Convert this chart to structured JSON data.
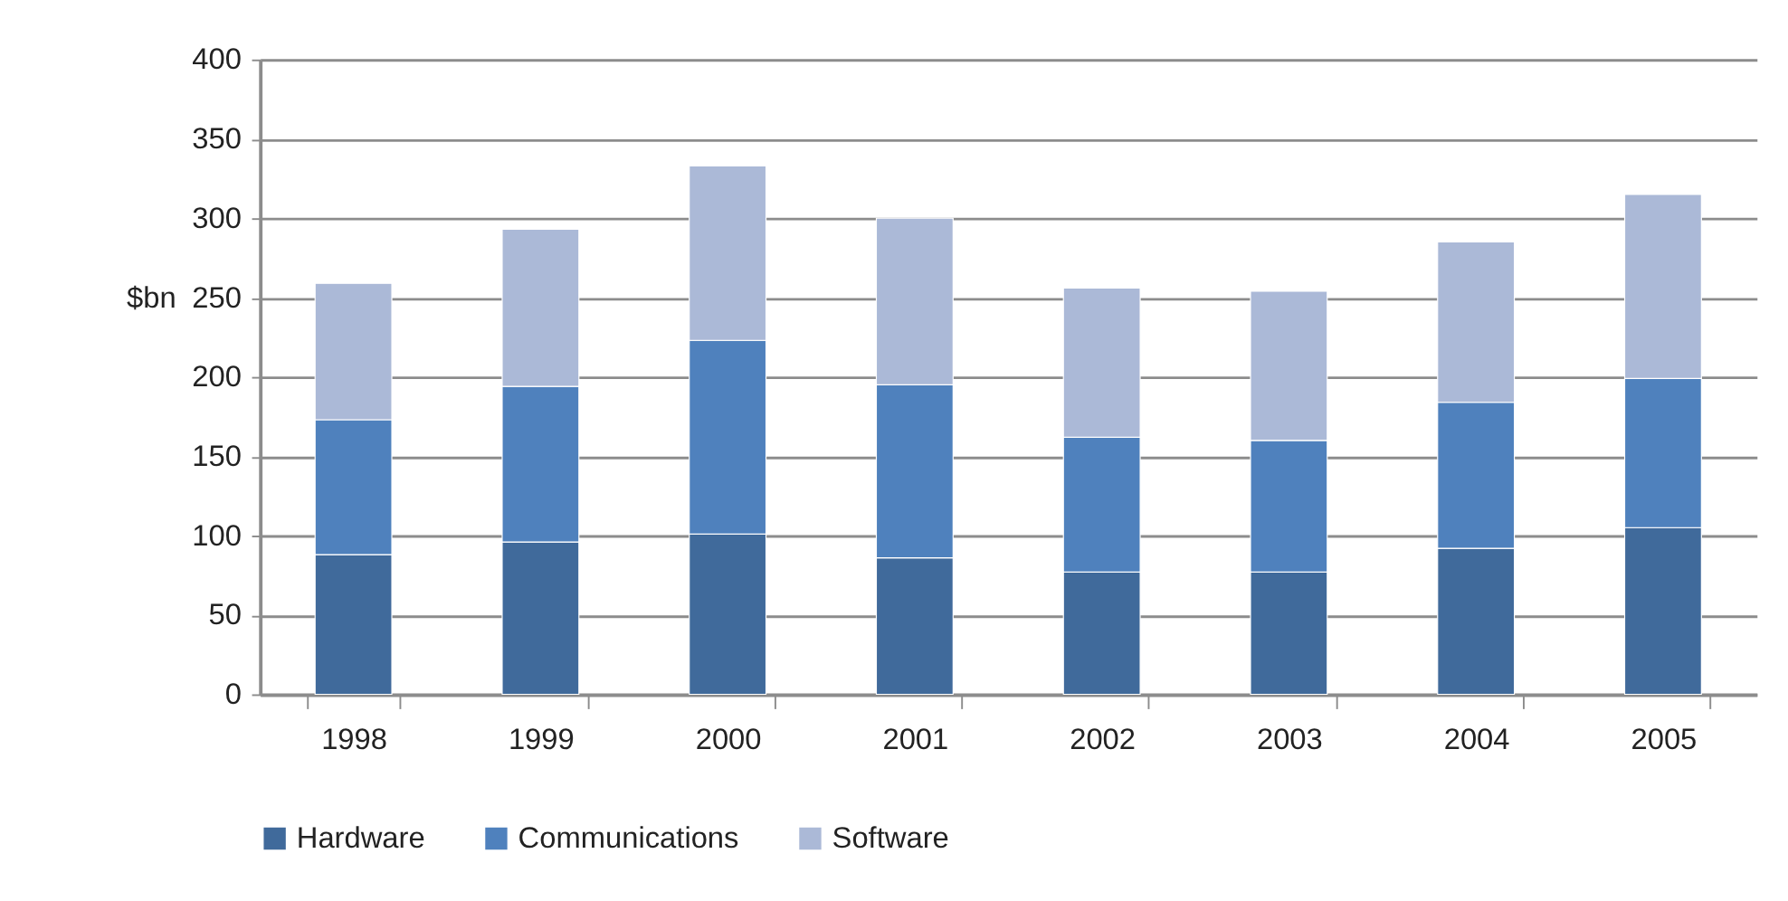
{
  "chart_data": {
    "type": "bar",
    "stacked": true,
    "ylabel": "$bn",
    "categories": [
      "1998",
      "1999",
      "2000",
      "2001",
      "2002",
      "2003",
      "2004",
      "2005"
    ],
    "series": [
      {
        "name": "Hardware",
        "color": "#406a9b",
        "values": [
          88,
          96,
          101,
          86,
          77,
          77,
          92,
          105
        ]
      },
      {
        "name": "Communications",
        "color": "#4f81bd",
        "values": [
          85,
          98,
          122,
          109,
          85,
          83,
          92,
          94
        ]
      },
      {
        "name": "Software",
        "color": "#abb9d7",
        "values": [
          86,
          99,
          110,
          105,
          94,
          94,
          101,
          116
        ]
      }
    ],
    "ylim": [
      0,
      400
    ],
    "yticks": [
      0,
      50,
      100,
      150,
      200,
      250,
      300,
      350,
      400
    ],
    "grid": "y",
    "legend": "bottom"
  }
}
